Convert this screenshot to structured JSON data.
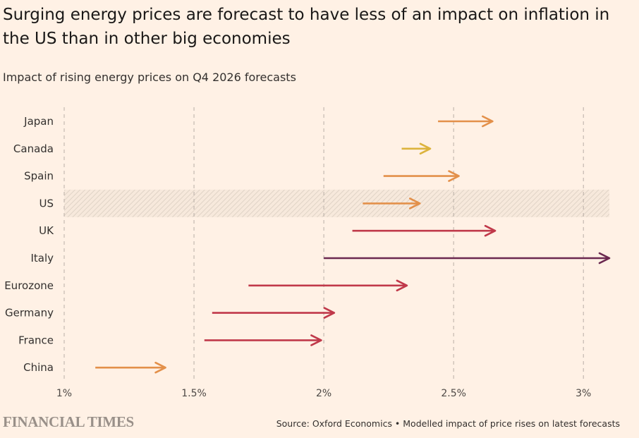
{
  "title": "Surging energy prices are forecast to have less of an impact on inflation in the US than in other big economies",
  "subtitle": "Impact of rising energy prices on Q4 2026 forecasts",
  "source": "Source: Oxford Economics • Modelled impact of price rises on latest forecasts",
  "logo": "FINANCIAL TIMES",
  "colors": {
    "background": "#fff1e5",
    "orange": "#e3904a",
    "yellow": "#dcb33c",
    "red": "#c0394a",
    "purple": "#6b2950",
    "highlight_hatch": "#e3d8cc"
  },
  "chart_data": {
    "type": "arrow",
    "title": "",
    "xlabel": "",
    "ylabel": "",
    "xlim": [
      1.0,
      3.1
    ],
    "xticks": [
      1,
      1.5,
      2,
      2.5,
      3
    ],
    "xtick_labels": [
      "1%",
      "1.5%",
      "2%",
      "2.5%",
      "3%"
    ],
    "grid": "vertical dashed",
    "highlighted_category": "US",
    "categories": [
      "Japan",
      "Canada",
      "Spain",
      "US",
      "UK",
      "Italy",
      "Eurozone",
      "Germany",
      "France",
      "China"
    ],
    "series": [
      {
        "category": "Japan",
        "from": 2.44,
        "to": 2.65,
        "color": "orange"
      },
      {
        "category": "Canada",
        "from": 2.3,
        "to": 2.41,
        "color": "yellow"
      },
      {
        "category": "Spain",
        "from": 2.23,
        "to": 2.52,
        "color": "orange"
      },
      {
        "category": "US",
        "from": 2.15,
        "to": 2.37,
        "color": "orange"
      },
      {
        "category": "UK",
        "from": 2.11,
        "to": 2.66,
        "color": "red"
      },
      {
        "category": "Italy",
        "from": 2.0,
        "to": 3.1,
        "color": "purple"
      },
      {
        "category": "Eurozone",
        "from": 1.71,
        "to": 2.32,
        "color": "red"
      },
      {
        "category": "Germany",
        "from": 1.57,
        "to": 2.04,
        "color": "red"
      },
      {
        "category": "France",
        "from": 1.54,
        "to": 1.99,
        "color": "red"
      },
      {
        "category": "China",
        "from": 1.12,
        "to": 1.39,
        "color": "orange"
      }
    ]
  }
}
